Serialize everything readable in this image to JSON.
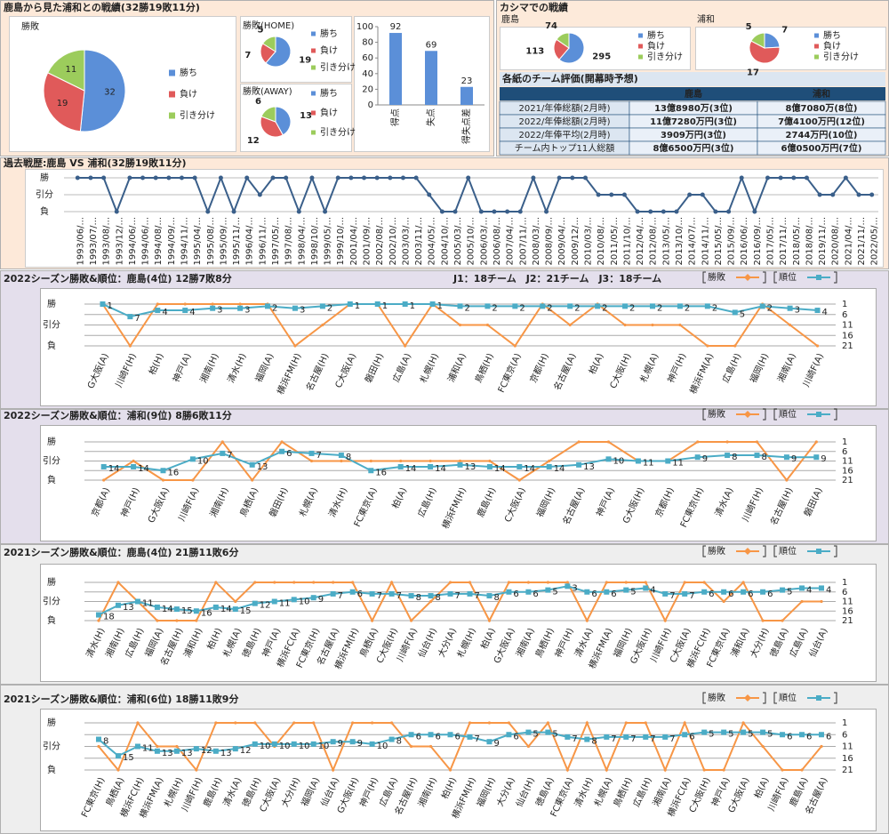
{
  "panels": {
    "results_title": "鹿島から見た浦和との戦績(32勝19敗11分)",
    "kashima_title": "カシマでの戦績"
  },
  "table": {
    "title": "各紙のチーム評価(開幕時予想)",
    "header": [
      "鹿島",
      "浦和"
    ],
    "rows": [
      [
        "2021/年俸総額(2月時)",
        "13億8980万(3位)",
        "8億7080万(8位)"
      ],
      [
        "2022/年俸総額(2月時)",
        "11億7280万円(3位)",
        "7億4100万円(12位)"
      ],
      [
        "2022/年俸平均(2月時)",
        "3909万円(3位)",
        "2744万円(10位)"
      ],
      [
        "チーム内トップ11人総額",
        "8億6500万円(3位)",
        "6億0500万円(7位)"
      ]
    ]
  },
  "chart_data": [
    {
      "type": "pie",
      "title": "勝敗",
      "categories": [
        "勝ち",
        "負け",
        "引き分け"
      ],
      "values": [
        32,
        19,
        11
      ],
      "colors": [
        "#5b8fd8",
        "#e05a5a",
        "#9ccc5c"
      ]
    },
    {
      "type": "pie",
      "title": "勝敗(HOME)",
      "categories": [
        "勝ち",
        "負け",
        "引き分け"
      ],
      "values": [
        19,
        7,
        5
      ],
      "colors": [
        "#5b8fd8",
        "#e05a5a",
        "#9ccc5c"
      ]
    },
    {
      "type": "pie",
      "title": "勝敗(AWAY)",
      "categories": [
        "勝ち",
        "負け",
        "引き分け"
      ],
      "values": [
        13,
        12,
        6
      ],
      "colors": [
        "#5b8fd8",
        "#e05a5a",
        "#9ccc5c"
      ]
    },
    {
      "type": "bar",
      "categories": [
        "得点",
        "失点",
        "得失点差"
      ],
      "values": [
        92,
        69,
        23
      ],
      "color": "#5b8fd8",
      "ylim": [
        0,
        100
      ],
      "yticks": [
        0,
        20,
        40,
        60,
        80,
        100
      ]
    },
    {
      "type": "pie",
      "title": "鹿島",
      "categories": [
        "勝ち",
        "負け",
        "引き分け"
      ],
      "values": [
        295,
        113,
        74
      ],
      "colors": [
        "#5b8fd8",
        "#e05a5a",
        "#9ccc5c"
      ]
    },
    {
      "type": "pie",
      "title": "浦和",
      "categories": [
        "勝ち",
        "負け",
        "引き分け"
      ],
      "values": [
        7,
        17,
        5
      ],
      "colors": [
        "#5b8fd8",
        "#e05a5a",
        "#9ccc5c"
      ]
    },
    {
      "type": "line",
      "title": "過去戦歴:鹿島 VS 浦和(32勝19敗11分)",
      "categories": [
        "1993/06/...",
        "1993/07/...",
        "1993/08/...",
        "1993/12/...",
        "1994/06/...",
        "1994/06/...",
        "1994/08/...",
        "1994/09/...",
        "1994/11/...",
        "1995/04/...",
        "1995/08/...",
        "1995/09/...",
        "1995/11/...",
        "1996/04/...",
        "1996/11/...",
        "1997/05/...",
        "1997/08/...",
        "1998/04/...",
        "1998/10/...",
        "1999/05/...",
        "1999/10/...",
        "2001/04/...",
        "2001/09/...",
        "2002/08/...",
        "2002/10/...",
        "2003/03/...",
        "2003/11/...",
        "2004/05/...",
        "2004/10/...",
        "2005/03/...",
        "2005/10/...",
        "2006/03/...",
        "2006/08/...",
        "2007/04/...",
        "2007/11/...",
        "2008/03/...",
        "2008/09/...",
        "2009/04/...",
        "2009/12/...",
        "2010/03/...",
        "2010/08/...",
        "2011/05/...",
        "2011/10/...",
        "2012/04/...",
        "2012/08/...",
        "2013/05/...",
        "2013/10/...",
        "2014/07/...",
        "2014/11/...",
        "2015/05/...",
        "2015/09/...",
        "2016/06/...",
        "2016/09/...",
        "2017/05/...",
        "2017/11/...",
        "2018/05/...",
        "2018/08/...",
        "2019/11/...",
        "2020/08/...",
        "2021/04/...",
        "2021/11/...",
        "2022/05/..."
      ],
      "values": [
        1,
        1,
        1,
        -1,
        1,
        1,
        1,
        1,
        1,
        1,
        -1,
        1,
        -1,
        1,
        0,
        1,
        1,
        -1,
        1,
        -1,
        1,
        1,
        1,
        1,
        1,
        1,
        1,
        0,
        -1,
        -1,
        1,
        -1,
        -1,
        -1,
        -1,
        1,
        -1,
        1,
        1,
        1,
        0,
        0,
        0,
        -1,
        -1,
        -1,
        -1,
        0,
        0,
        -1,
        -1,
        1,
        -1,
        1,
        1,
        1,
        1,
        0,
        0,
        1,
        0,
        0
      ],
      "color": "#3a5f8a",
      "ylim": [
        -1,
        1
      ],
      "yticks": [
        {
          "value": 1,
          "label": "勝"
        },
        {
          "value": 0,
          "label": "引分"
        },
        {
          "value": -1,
          "label": "負"
        }
      ],
      "grid": true
    },
    {
      "type": "line",
      "title": "2022シーズン勝敗&順位：鹿島(4位) 12勝7敗8分",
      "note": "J1：18チーム　J2：21チーム　J3：18チーム",
      "categories": [
        "G大阪(A)",
        "川崎F(H)",
        "柏(H)",
        "神戸(A)",
        "湘南(H)",
        "清水(H)",
        "福岡(A)",
        "横浜FM(H)",
        "名古屋(H)",
        "C大阪(A)",
        "磐田(H)",
        "広島(A)",
        "札幌(H)",
        "浦和(A)",
        "鳥栖(H)",
        "FC東京(A)",
        "京都(H)",
        "名古屋(A)",
        "柏(A)",
        "C大阪(H)",
        "札幌(A)",
        "神戸(H)",
        "横浜FM(A)",
        "広島(H)",
        "福岡(H)",
        "湘南(A)",
        "川崎F(A)"
      ],
      "series": [
        {
          "name": "勝敗",
          "color": "#f79646",
          "values": [
            1,
            -1,
            1,
            1,
            1,
            1,
            1,
            -1,
            0,
            1,
            1,
            -1,
            1,
            0,
            0,
            -1,
            1,
            0,
            1,
            0,
            0,
            0,
            -1,
            -1,
            1,
            0,
            -1
          ]
        },
        {
          "name": "順位",
          "color": "#4bacc6",
          "axis": "y2",
          "values": [
            1,
            7,
            4,
            4,
            3,
            3,
            2,
            3,
            2,
            1,
            1,
            1,
            1,
            2,
            2,
            2,
            2,
            2,
            2,
            2,
            2,
            2,
            2,
            5,
            2,
            3,
            4
          ]
        }
      ],
      "ylim": [
        -1,
        1
      ],
      "yticks": [
        {
          "value": 1,
          "label": "勝"
        },
        {
          "value": 0,
          "label": "引分"
        },
        {
          "value": -1,
          "label": "負"
        }
      ],
      "y2lim": [
        21,
        1
      ],
      "y2ticks": [
        1,
        6,
        11,
        16,
        21
      ],
      "grid": true
    },
    {
      "type": "line",
      "title": "2022シーズン勝敗&順位：浦和(9位) 8勝6敗11分",
      "categories": [
        "京都(A)",
        "神戸(H)",
        "G大阪(A)",
        "川崎F(A)",
        "湘南(H)",
        "鳥栖(A)",
        "磐田(H)",
        "札幌(A)",
        "清水(H)",
        "FC東京(A)",
        "柏(A)",
        "広島(H)",
        "横浜FM(H)",
        "鹿島(H)",
        "C大阪(A)",
        "福岡(H)",
        "名古屋(A)",
        "神戸(A)",
        "G大阪(H)",
        "京都(H)",
        "FC東京(H)",
        "清水(A)",
        "川崎F(H)",
        "名古屋(H)",
        "磐田(A)"
      ],
      "series": [
        {
          "name": "勝敗",
          "color": "#f79646",
          "values": [
            -1,
            0,
            -1,
            -1,
            1,
            -1,
            1,
            0,
            0,
            0,
            0,
            0,
            0,
            0,
            -1,
            0,
            1,
            1,
            0,
            0,
            1,
            1,
            1,
            -1,
            1
          ]
        },
        {
          "name": "順位",
          "color": "#4bacc6",
          "axis": "y2",
          "values": [
            14,
            14,
            16,
            10,
            7,
            13,
            6,
            7,
            8,
            16,
            14,
            14,
            13,
            14,
            14,
            14,
            13,
            10,
            11,
            11,
            9,
            8,
            8,
            9,
            9
          ]
        }
      ],
      "ylim": [
        -1,
        1
      ],
      "yticks": [
        {
          "value": 1,
          "label": "勝"
        },
        {
          "value": 0,
          "label": "引分"
        },
        {
          "value": -1,
          "label": "負"
        }
      ],
      "y2lim": [
        21,
        1
      ],
      "y2ticks": [
        1,
        6,
        11,
        16,
        21
      ],
      "grid": true
    },
    {
      "type": "line",
      "title": "2021シーズン勝敗&順位：鹿島(4位) 21勝11敗6分",
      "categories": [
        "清水(H)",
        "湘南(H)",
        "広島(H)",
        "福岡(A)",
        "名古屋(H)",
        "浦和(H)",
        "柏(H)",
        "札幌(A)",
        "徳島(H)",
        "神戸(A)",
        "横浜FC(A)",
        "FC東京(H)",
        "名古屋(A)",
        "横浜FM(H)",
        "鳥栖(A)",
        "C大阪(H)",
        "川崎F(A)",
        "仙台(H)",
        "大分(A)",
        "札幌(H)",
        "柏(A)",
        "G大阪(A)",
        "湘南(A)",
        "鳥栖(H)",
        "神戸(H)",
        "清水(A)",
        "横浜FM(A)",
        "福岡(H)",
        "G大阪(H)",
        "川崎F(H)",
        "C大阪(A)",
        "横浜FC(H)",
        "FC東京(A)",
        "浦和(A)",
        "大分(H)",
        "徳島(A)",
        "広島(A)",
        "仙台(A)"
      ],
      "series": [
        {
          "name": "勝敗",
          "color": "#f79646",
          "values": [
            -1,
            1,
            0,
            -1,
            -1,
            -1,
            1,
            0,
            1,
            1,
            1,
            1,
            1,
            1,
            -1,
            1,
            -1,
            0,
            1,
            1,
            -1,
            1,
            1,
            1,
            1,
            -1,
            1,
            1,
            1,
            -1,
            1,
            1,
            0,
            1,
            -1,
            -1,
            0,
            0
          ]
        },
        {
          "name": "順位",
          "color": "#4bacc6",
          "axis": "y2",
          "values": [
            18,
            13,
            11,
            14,
            15,
            16,
            14,
            15,
            12,
            11,
            10,
            9,
            7,
            6,
            7,
            7,
            8,
            8,
            7,
            7,
            8,
            6,
            6,
            5,
            3,
            6,
            6,
            5,
            4,
            7,
            7,
            6,
            6,
            6,
            6,
            5,
            4,
            4
          ]
        }
      ],
      "ylim": [
        -1,
        1
      ],
      "yticks": [
        {
          "value": 1,
          "label": "勝"
        },
        {
          "value": 0,
          "label": "引分"
        },
        {
          "value": -1,
          "label": "負"
        }
      ],
      "y2lim": [
        21,
        1
      ],
      "y2ticks": [
        1,
        6,
        11,
        16,
        21
      ],
      "grid": true
    },
    {
      "type": "line",
      "title": "2021シーズン勝敗&順位：浦和(6位) 18勝11敗9分",
      "categories": [
        "FC東京(H)",
        "鳥栖(A)",
        "横浜FC(H)",
        "横浜FM(A)",
        "札幌(H)",
        "川崎F(H)",
        "鹿島(H)",
        "清水(A)",
        "徳島(H)",
        "C大阪(A)",
        "大分(H)",
        "福岡(A)",
        "仙台(A)",
        "G大阪(H)",
        "神戸(H)",
        "広島(A)",
        "名古屋(H)",
        "湘南(H)",
        "柏(H)",
        "横浜FM(H)",
        "福岡(H)",
        "大分(A)",
        "仙台(H)",
        "徳島(A)",
        "FC東京(A)",
        "清水(H)",
        "札幌(A)",
        "鳥栖(H)",
        "広島(H)",
        "湘南(A)",
        "横浜FC(A)",
        "C大阪(H)",
        "神戸(A)",
        "G大阪(A)",
        "柏(A)",
        "川崎F(A)",
        "鹿島(A)",
        "名古屋(A)"
      ],
      "series": [
        {
          "name": "勝敗",
          "color": "#f79646",
          "values": [
            0,
            -1,
            1,
            0,
            0,
            -1,
            1,
            1,
            1,
            0,
            1,
            1,
            -1,
            1,
            1,
            1,
            0,
            0,
            -1,
            1,
            1,
            1,
            0,
            1,
            -1,
            1,
            -1,
            1,
            1,
            -1,
            1,
            -1,
            -1,
            1,
            0,
            -1,
            -1,
            0
          ]
        },
        {
          "name": "順位",
          "color": "#4bacc6",
          "axis": "y2",
          "values": [
            8,
            15,
            11,
            13,
            13,
            12,
            13,
            12,
            10,
            10,
            10,
            10,
            9,
            9,
            10,
            8,
            6,
            6,
            6,
            7,
            9,
            6,
            5,
            5,
            7,
            8,
            7,
            7,
            7,
            7,
            6,
            5,
            5,
            5,
            5,
            6,
            6,
            6
          ]
        }
      ],
      "ylim": [
        -1,
        1
      ],
      "yticks": [
        {
          "value": 1,
          "label": "勝"
        },
        {
          "value": 0,
          "label": "引分"
        },
        {
          "value": -1,
          "label": "負"
        }
      ],
      "y2lim": [
        21,
        1
      ],
      "y2ticks": [
        1,
        6,
        11,
        16,
        21
      ],
      "grid": true
    }
  ]
}
